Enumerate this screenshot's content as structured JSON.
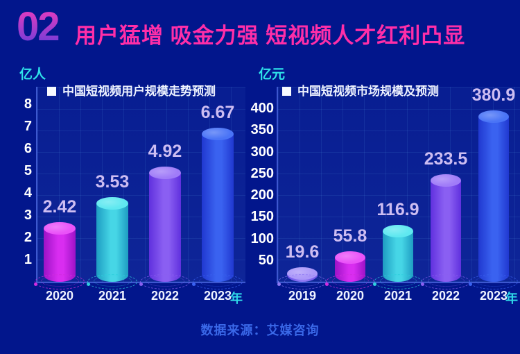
{
  "colors": {
    "background": "#02168c",
    "title_pink": "#ff2ea8",
    "number_gradient_top": "#e03cc0",
    "number_gradient_bottom": "#6e3cd8",
    "axis_line": "#3d57cf",
    "unit_cyan": "#2fe3ea",
    "value_label": "#cdbdf2",
    "tick_label": "#ffffff",
    "year_suffix_cyan": "#2fd8e8",
    "source_blue": "#3a68e8"
  },
  "header": {
    "number": "02",
    "title": "用户猛增 吸金力强 短视频人才红利凸显"
  },
  "footer": {
    "source": "数据来源：艾媒咨询"
  },
  "chart_data": [
    {
      "type": "bar",
      "title": "中国短视频用户规模走势预测",
      "unit": "亿人",
      "x_axis_suffix": "年",
      "categories": [
        "2020",
        "2021",
        "2022",
        "2023"
      ],
      "values": [
        2.42,
        3.53,
        4.92,
        6.67
      ],
      "ylim": [
        0,
        8
      ],
      "yticks": [
        1,
        2,
        3,
        4,
        5,
        6,
        7,
        8
      ],
      "grid": true,
      "legend_position": "top-left",
      "bar_style": "3d-cylinder",
      "bar_colors": [
        {
          "name": "magenta",
          "dark": "#9c12c6",
          "light": "#d92df0",
          "top": "#ea52f8",
          "ring": "#d22ce0"
        },
        {
          "name": "cyan",
          "dark": "#1e9cc2",
          "light": "#46d6e6",
          "top": "#5fe8f0",
          "ring": "#2fd0de"
        },
        {
          "name": "purple",
          "dark": "#6030de",
          "light": "#8a5ff2",
          "top": "#a07cf8",
          "ring": "#8a5ff0"
        },
        {
          "name": "blue",
          "dark": "#2038d0",
          "light": "#3a62f0",
          "top": "#4a74f6",
          "ring": "#3a62f0"
        }
      ]
    },
    {
      "type": "bar",
      "title": "中国短视频市场规模及预测",
      "unit": "亿元",
      "x_axis_suffix": "年",
      "categories": [
        "2019",
        "2020",
        "2021",
        "2022",
        "2023"
      ],
      "values": [
        19.6,
        55.8,
        116.9,
        233.5,
        380.9
      ],
      "ylim": [
        0,
        400
      ],
      "yticks": [
        50,
        100,
        150,
        200,
        250,
        300,
        350,
        400
      ],
      "grid": true,
      "legend_position": "top-left",
      "bar_style": "3d-cylinder",
      "bar_colors": [
        {
          "name": "violet",
          "dark": "#6a4ce8",
          "light": "#8f79f4",
          "top": "#ab97f9",
          "ring": "#8f79f4"
        },
        {
          "name": "magenta",
          "dark": "#9c12c6",
          "light": "#d92df0",
          "top": "#ea52f8",
          "ring": "#d22ce0"
        },
        {
          "name": "cyan",
          "dark": "#1e9cc2",
          "light": "#46d6e6",
          "top": "#5fe8f0",
          "ring": "#2fd0de"
        },
        {
          "name": "purple",
          "dark": "#6030de",
          "light": "#8a5ff2",
          "top": "#a07cf8",
          "ring": "#8a5ff0"
        },
        {
          "name": "blue",
          "dark": "#2038d0",
          "light": "#3a62f0",
          "top": "#4a74f6",
          "ring": "#3a62f0"
        }
      ]
    }
  ]
}
